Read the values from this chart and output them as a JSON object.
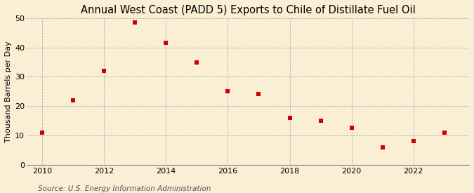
{
  "title": "Annual West Coast (PADD 5) Exports to Chile of Distillate Fuel Oil",
  "ylabel": "Thousand Barrels per Day",
  "source": "Source: U.S. Energy Information Administration",
  "years": [
    2010,
    2011,
    2012,
    2013,
    2014,
    2015,
    2016,
    2017,
    2018,
    2019,
    2020,
    2021,
    2022,
    2023
  ],
  "values": [
    11,
    22,
    32,
    48.5,
    41.5,
    35,
    25,
    24,
    16,
    15,
    12.5,
    6,
    8,
    11
  ],
  "marker_color": "#cc0000",
  "marker_size": 4.5,
  "xlim": [
    2009.5,
    2023.8
  ],
  "ylim": [
    0,
    50
  ],
  "yticks": [
    0,
    10,
    20,
    30,
    40,
    50
  ],
  "xticks": [
    2010,
    2012,
    2014,
    2016,
    2018,
    2020,
    2022
  ],
  "background_color": "#faefd4",
  "plot_bg_color": "#faefd4",
  "grid_color": "#aaaaaa",
  "title_fontsize": 10.5,
  "label_fontsize": 8,
  "tick_fontsize": 8,
  "source_fontsize": 7.5
}
